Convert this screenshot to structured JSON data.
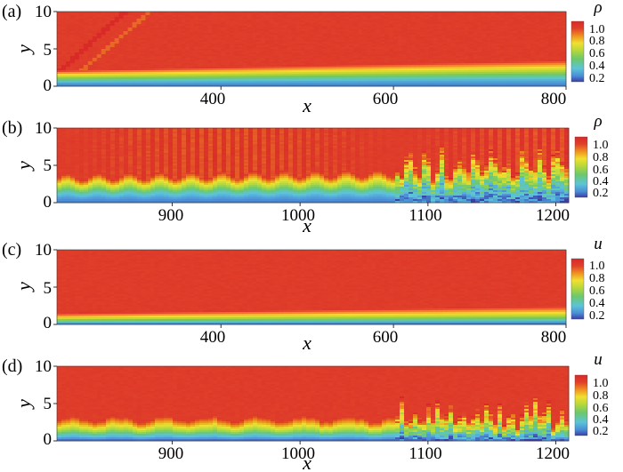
{
  "colorscale": {
    "stops": [
      "#3a3fa6",
      "#4a8fd6",
      "#5cc4d8",
      "#6cc86a",
      "#b8d83a",
      "#f0e030",
      "#f09020",
      "#e0402a",
      "#d82828"
    ],
    "ticks": [
      "0.2",
      "0.4",
      "0.6",
      "0.8",
      "1.0"
    ],
    "tick_values": [
      0.2,
      0.4,
      0.6,
      0.8,
      1.0
    ],
    "range": [
      0.15,
      1.1
    ]
  },
  "chart_data": [
    {
      "type": "heatmap",
      "panel_label": "(a)",
      "variable": "ρ",
      "xlabel": "x",
      "ylabel": "y",
      "xlim": [
        210,
        800
      ],
      "ylim": [
        0,
        10
      ],
      "xticks": [
        400,
        600,
        800
      ],
      "xtick_labels": [
        "400",
        "600",
        "800"
      ],
      "yticks": [
        0,
        5,
        10
      ],
      "ytick_labels": [
        "0",
        "5",
        "10"
      ],
      "colorbar_ticks": [
        "0.2",
        "0.4",
        "0.6",
        "0.8",
        "1.0"
      ],
      "field": "density: free stream ~1.0, oblique shock from x≈215 to x≈300, boundary layer ~2-3.5 thick with low density ~0.25 near wall"
    },
    {
      "type": "heatmap",
      "panel_label": "(b)",
      "variable": "ρ",
      "xlabel": "x",
      "ylabel": "y",
      "xlim": [
        810,
        1210
      ],
      "ylim": [
        0,
        10
      ],
      "xticks": [
        900,
        1000,
        1100,
        1200
      ],
      "xtick_labels": [
        "900",
        "1000",
        "1100",
        "1200"
      ],
      "yticks": [
        0,
        5,
        10
      ],
      "ytick_labels": [
        "0",
        "5",
        "10"
      ],
      "colorbar_ticks": [
        "0.2",
        "0.4",
        "0.6",
        "0.8",
        "1.0"
      ],
      "field": "density: boundary layer ~3-5 thick, transition to turbulence beyond x≈1080"
    },
    {
      "type": "heatmap",
      "panel_label": "(c)",
      "variable": "u",
      "xlabel": "x",
      "ylabel": "y",
      "xlim": [
        210,
        800
      ],
      "ylim": [
        0,
        10
      ],
      "xticks": [
        400,
        600,
        800
      ],
      "xtick_labels": [
        "400",
        "600",
        "800"
      ],
      "yticks": [
        0,
        5,
        10
      ],
      "ytick_labels": [
        "0",
        "5",
        "10"
      ],
      "colorbar_ticks": [
        "0.2",
        "0.4",
        "0.6",
        "0.8",
        "1.0"
      ],
      "field": "streamwise velocity: free stream ~1.0, laminar boundary layer growing from ~1.5 to ~2.5"
    },
    {
      "type": "heatmap",
      "panel_label": "(d)",
      "variable": "u",
      "xlabel": "x",
      "ylabel": "y",
      "xlim": [
        810,
        1210
      ],
      "ylim": [
        0,
        10
      ],
      "xticks": [
        900,
        1000,
        1100,
        1200
      ],
      "xtick_labels": [
        "900",
        "1000",
        "1100",
        "1200"
      ],
      "yticks": [
        0,
        5,
        10
      ],
      "ytick_labels": [
        "0",
        "5",
        "10"
      ],
      "colorbar_ticks": [
        "0.2",
        "0.4",
        "0.6",
        "0.8",
        "1.0"
      ],
      "field": "streamwise velocity: boundary layer ~3 thick, turbulent breakdown beyond x≈1080"
    }
  ]
}
